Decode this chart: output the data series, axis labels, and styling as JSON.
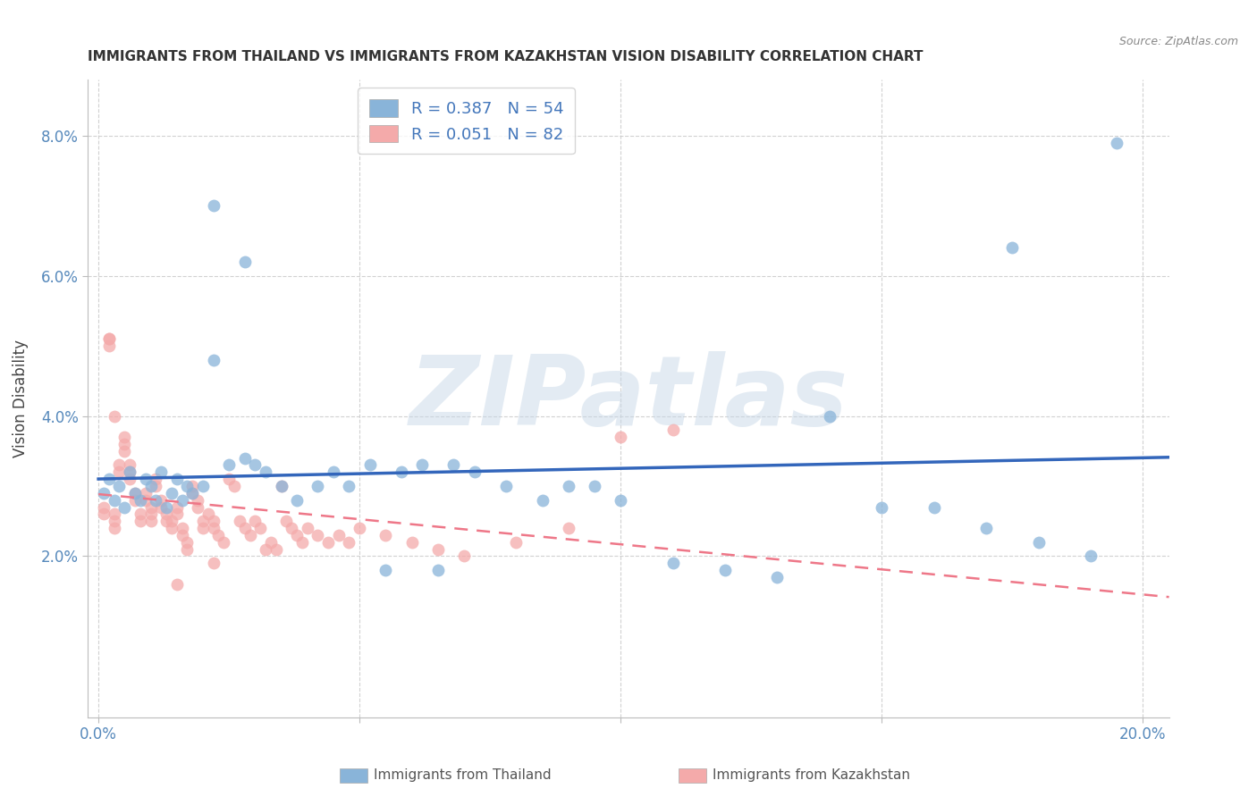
{
  "title": "IMMIGRANTS FROM THAILAND VS IMMIGRANTS FROM KAZAKHSTAN VISION DISABILITY CORRELATION CHART",
  "source": "Source: ZipAtlas.com",
  "xlabel": "",
  "ylabel": "Vision Disability",
  "xlim": [
    -0.002,
    0.205
  ],
  "ylim": [
    -0.003,
    0.088
  ],
  "xticks": [
    0.0,
    0.05,
    0.1,
    0.15,
    0.2
  ],
  "xtick_labels": [
    "0.0%",
    "",
    "",
    "",
    "20.0%"
  ],
  "yticks": [
    0.02,
    0.04,
    0.06,
    0.08
  ],
  "ytick_labels": [
    "2.0%",
    "4.0%",
    "6.0%",
    "8.0%"
  ],
  "legend1_label": "R = 0.387   N = 54",
  "legend2_label": "R = 0.051   N = 82",
  "blue_color": "#89B4D9",
  "pink_color": "#F4AAAA",
  "blue_line_color": "#3366BB",
  "pink_line_color": "#EE7788",
  "watermark_text": "ZIPatlas",
  "thailand_x": [
    0.001,
    0.002,
    0.003,
    0.004,
    0.005,
    0.006,
    0.007,
    0.008,
    0.009,
    0.01,
    0.011,
    0.012,
    0.013,
    0.014,
    0.015,
    0.016,
    0.017,
    0.018,
    0.02,
    0.022,
    0.025,
    0.028,
    0.03,
    0.032,
    0.035,
    0.038,
    0.042,
    0.045,
    0.048,
    0.052,
    0.058,
    0.062,
    0.068,
    0.072,
    0.078,
    0.085,
    0.09,
    0.095,
    0.1,
    0.11,
    0.12,
    0.13,
    0.14,
    0.15,
    0.16,
    0.17,
    0.18,
    0.19,
    0.195,
    0.022,
    0.028,
    0.055,
    0.065,
    0.175
  ],
  "thailand_y": [
    0.029,
    0.031,
    0.028,
    0.03,
    0.027,
    0.032,
    0.029,
    0.028,
    0.031,
    0.03,
    0.028,
    0.032,
    0.027,
    0.029,
    0.031,
    0.028,
    0.03,
    0.029,
    0.03,
    0.048,
    0.033,
    0.034,
    0.033,
    0.032,
    0.03,
    0.028,
    0.03,
    0.032,
    0.03,
    0.033,
    0.032,
    0.033,
    0.033,
    0.032,
    0.03,
    0.028,
    0.03,
    0.03,
    0.028,
    0.019,
    0.018,
    0.017,
    0.04,
    0.027,
    0.027,
    0.024,
    0.022,
    0.02,
    0.079,
    0.07,
    0.062,
    0.018,
    0.018,
    0.064
  ],
  "kazakhstan_x": [
    0.001,
    0.001,
    0.002,
    0.002,
    0.003,
    0.003,
    0.003,
    0.004,
    0.004,
    0.005,
    0.005,
    0.005,
    0.006,
    0.006,
    0.006,
    0.007,
    0.007,
    0.008,
    0.008,
    0.009,
    0.009,
    0.01,
    0.01,
    0.01,
    0.011,
    0.011,
    0.012,
    0.012,
    0.013,
    0.013,
    0.014,
    0.014,
    0.015,
    0.015,
    0.016,
    0.016,
    0.017,
    0.017,
    0.018,
    0.018,
    0.019,
    0.019,
    0.02,
    0.02,
    0.021,
    0.022,
    0.022,
    0.023,
    0.024,
    0.025,
    0.026,
    0.027,
    0.028,
    0.029,
    0.03,
    0.031,
    0.032,
    0.033,
    0.034,
    0.035,
    0.036,
    0.037,
    0.038,
    0.039,
    0.04,
    0.042,
    0.044,
    0.046,
    0.048,
    0.05,
    0.055,
    0.06,
    0.065,
    0.07,
    0.08,
    0.09,
    0.1,
    0.11,
    0.002,
    0.003,
    0.015,
    0.022
  ],
  "kazakhstan_y": [
    0.027,
    0.026,
    0.051,
    0.05,
    0.026,
    0.025,
    0.024,
    0.033,
    0.032,
    0.037,
    0.036,
    0.035,
    0.033,
    0.032,
    0.031,
    0.029,
    0.028,
    0.026,
    0.025,
    0.029,
    0.028,
    0.027,
    0.026,
    0.025,
    0.031,
    0.03,
    0.028,
    0.027,
    0.026,
    0.025,
    0.025,
    0.024,
    0.027,
    0.026,
    0.024,
    0.023,
    0.022,
    0.021,
    0.03,
    0.029,
    0.028,
    0.027,
    0.025,
    0.024,
    0.026,
    0.025,
    0.024,
    0.023,
    0.022,
    0.031,
    0.03,
    0.025,
    0.024,
    0.023,
    0.025,
    0.024,
    0.021,
    0.022,
    0.021,
    0.03,
    0.025,
    0.024,
    0.023,
    0.022,
    0.024,
    0.023,
    0.022,
    0.023,
    0.022,
    0.024,
    0.023,
    0.022,
    0.021,
    0.02,
    0.022,
    0.024,
    0.037,
    0.038,
    0.051,
    0.04,
    0.016,
    0.019
  ]
}
